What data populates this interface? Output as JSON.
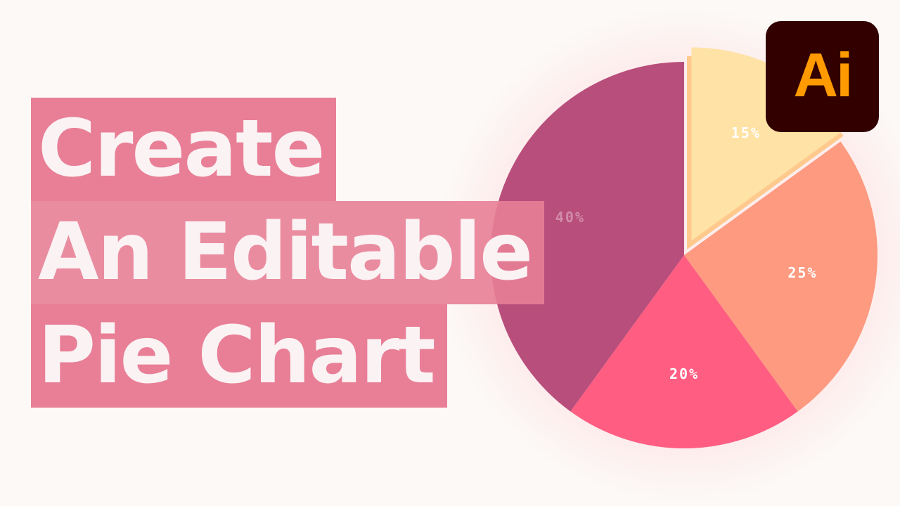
{
  "headline": {
    "line1": "Create",
    "line2": "An Editable",
    "line3": "Pie Chart"
  },
  "badge": {
    "label": "Ai",
    "background_color": "#330000",
    "text_color": "#ff9a00"
  },
  "chart_data": {
    "type": "pie",
    "title": "",
    "slices": [
      {
        "value": 15,
        "label": "15%",
        "color": "#ffe2a5"
      },
      {
        "value": 25,
        "label": "25%",
        "color": "#fd9a80"
      },
      {
        "value": 20,
        "label": "20%",
        "color": "#ff5e82"
      },
      {
        "value": 40,
        "label": "40%",
        "color": "#b84e7b"
      }
    ],
    "start_angle": "12 o'clock, clockwise",
    "legend": "none",
    "exploded_slice": "15%"
  }
}
